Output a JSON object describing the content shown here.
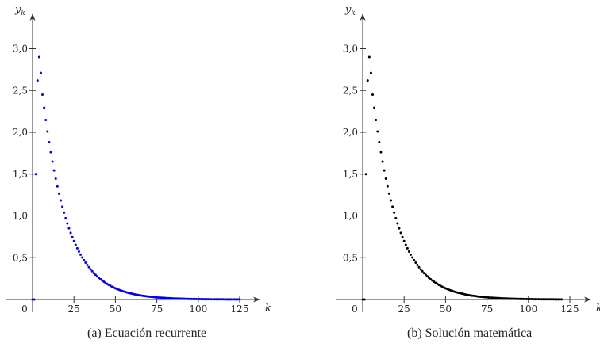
{
  "chart_data": [
    {
      "type": "scatter",
      "caption": "(a) Ecuación recurrente",
      "xlabel": "k",
      "ylabel": "y_k",
      "ylabel_base": "y",
      "ylabel_sub": "k",
      "x_ticks": [
        "0",
        "25",
        "50",
        "75",
        "100",
        "125"
      ],
      "y_ticks": [
        "0,5",
        "1,0",
        "1,5",
        "2,0",
        "2,5",
        "3,0"
      ],
      "xlim": [
        0,
        130
      ],
      "ylim": [
        0,
        3.2
      ],
      "color": "#0000ee",
      "points": [
        {
          "x": 0,
          "y": 0.0
        },
        {
          "x": 1,
          "y": 0.0
        },
        {
          "x": 2,
          "y": 1.5
        },
        {
          "x": 3,
          "y": 2.62
        },
        {
          "x": 4,
          "y": 2.9
        },
        {
          "x": 5,
          "y": 2.71
        }
      ],
      "decay": {
        "from": 6,
        "to": 125,
        "start_value": 2.45,
        "rate": 0.066
      }
    },
    {
      "type": "scatter",
      "caption": "(b) Solución matemática",
      "xlabel": "k",
      "ylabel": "y_k",
      "ylabel_base": "y",
      "ylabel_sub": "k",
      "x_ticks": [
        "0",
        "25",
        "50",
        "75",
        "100",
        "125"
      ],
      "y_ticks": [
        "0,5",
        "1,0",
        "1,5",
        "2,0",
        "2,5",
        "3,0"
      ],
      "xlim": [
        0,
        130
      ],
      "ylim": [
        0,
        3.2
      ],
      "color": "#000000",
      "points": [
        {
          "x": 0,
          "y": 0.0
        },
        {
          "x": 1,
          "y": 0.0
        },
        {
          "x": 2,
          "y": 1.5
        },
        {
          "x": 3,
          "y": 2.62
        },
        {
          "x": 4,
          "y": 2.9
        },
        {
          "x": 5,
          "y": 2.71
        }
      ],
      "decay": {
        "from": 6,
        "to": 120,
        "start_value": 2.45,
        "rate": 0.066
      }
    }
  ]
}
